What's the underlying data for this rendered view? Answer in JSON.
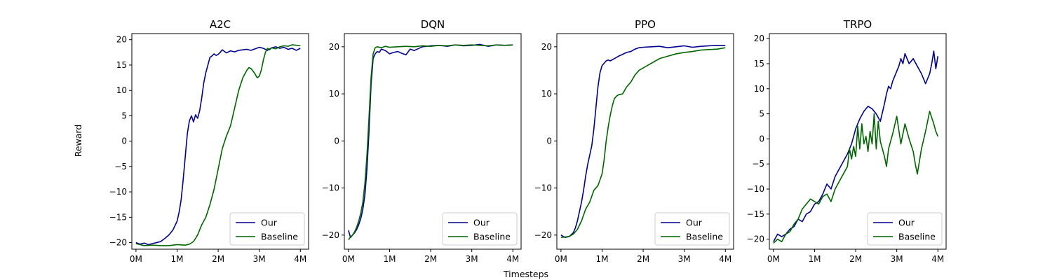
{
  "figure": {
    "xlabel": "Timesteps",
    "ylabel": "Reward",
    "colors": {
      "our": "#00008b",
      "baseline": "#006400",
      "frame": "#000000",
      "legend_border": "#cccccc"
    }
  },
  "chart_data": [
    {
      "type": "line",
      "title": "A2C",
      "xlim": [
        -0.1,
        4.2
      ],
      "ylim": [
        -21.3,
        21.2
      ],
      "xticks": [
        0,
        1,
        2,
        3,
        4
      ],
      "xtick_labels": [
        "0M",
        "1M",
        "2M",
        "3M",
        "4M"
      ],
      "yticks": [
        -20,
        -15,
        -10,
        -5,
        0,
        5,
        10,
        15,
        20
      ],
      "ytick_labels": [
        "−20",
        "−15",
        "−10",
        "−5",
        "0",
        "5",
        "10",
        "15",
        "20"
      ],
      "legend": {
        "placement": "lower-right",
        "entries": [
          "Our",
          "Baseline"
        ]
      },
      "series": [
        {
          "name": "Our",
          "color": "#00008b",
          "x": [
            0,
            0.1,
            0.2,
            0.3,
            0.4,
            0.5,
            0.6,
            0.7,
            0.8,
            0.9,
            1.0,
            1.05,
            1.1,
            1.15,
            1.2,
            1.25,
            1.3,
            1.35,
            1.4,
            1.45,
            1.5,
            1.55,
            1.6,
            1.65,
            1.7,
            1.75,
            1.8,
            1.85,
            1.9,
            1.95,
            2.0,
            2.05,
            2.1,
            2.15,
            2.2,
            2.3,
            2.4,
            2.5,
            2.6,
            2.7,
            2.8,
            2.9,
            3.0,
            3.1,
            3.2,
            3.3,
            3.4,
            3.5,
            3.6,
            3.7,
            3.8,
            3.9,
            4.0
          ],
          "y": [
            -20.0,
            -20.3,
            -20.1,
            -20.4,
            -20.2,
            -20.0,
            -19.8,
            -19.2,
            -18.5,
            -17.5,
            -15.8,
            -14.0,
            -11.5,
            -7.5,
            -3.0,
            1.5,
            4.0,
            5.0,
            3.8,
            5.2,
            4.5,
            6.0,
            8.5,
            11.5,
            13.5,
            15.0,
            16.5,
            16.8,
            17.2,
            16.9,
            17.1,
            17.5,
            18.0,
            17.7,
            17.4,
            17.8,
            17.6,
            17.9,
            18.0,
            18.1,
            17.9,
            18.2,
            18.5,
            18.3,
            17.9,
            18.4,
            18.6,
            18.3,
            18.5,
            18.1,
            18.3,
            17.9,
            18.3
          ]
        },
        {
          "name": "Baseline",
          "color": "#006400",
          "x": [
            0,
            0.2,
            0.4,
            0.6,
            0.8,
            1.0,
            1.2,
            1.3,
            1.4,
            1.5,
            1.6,
            1.7,
            1.8,
            1.9,
            2.0,
            2.1,
            2.2,
            2.3,
            2.4,
            2.5,
            2.6,
            2.7,
            2.75,
            2.8,
            2.85,
            2.9,
            2.95,
            3.0,
            3.05,
            3.1,
            3.15,
            3.2,
            3.25,
            3.3,
            3.4,
            3.5,
            3.6,
            3.7,
            3.8,
            3.9,
            4.0
          ],
          "y": [
            -20.2,
            -20.6,
            -20.5,
            -20.6,
            -20.6,
            -20.4,
            -20.5,
            -20.3,
            -19.8,
            -18.5,
            -16.5,
            -15.0,
            -12.5,
            -9.5,
            -5.5,
            -1.5,
            1.0,
            3.0,
            6.5,
            10.0,
            12.5,
            14.0,
            14.5,
            14.3,
            13.8,
            13.2,
            12.5,
            12.8,
            14.0,
            16.0,
            17.5,
            18.3,
            18.0,
            18.4,
            18.2,
            18.6,
            18.8,
            18.7,
            19.0,
            18.9,
            18.8
          ]
        }
      ]
    },
    {
      "type": "line",
      "title": "DQN",
      "xlim": [
        -0.1,
        4.2
      ],
      "ylim": [
        -23.0,
        22.8
      ],
      "xticks": [
        0,
        1,
        2,
        3,
        4
      ],
      "xtick_labels": [
        "0M",
        "1M",
        "2M",
        "3M",
        "4M"
      ],
      "yticks": [
        -20,
        -10,
        0,
        10,
        20
      ],
      "ytick_labels": [
        "−20",
        "−10",
        "0",
        "10",
        "20"
      ],
      "legend": {
        "placement": "lower-right",
        "entries": [
          "Our",
          "Baseline"
        ]
      },
      "series": [
        {
          "name": "Our",
          "color": "#00008b",
          "x": [
            0,
            0.05,
            0.1,
            0.15,
            0.2,
            0.25,
            0.3,
            0.35,
            0.4,
            0.45,
            0.5,
            0.55,
            0.6,
            0.65,
            0.7,
            0.75,
            0.8,
            0.9,
            1.0,
            1.1,
            1.2,
            1.3,
            1.4,
            1.5,
            1.6,
            1.8,
            2.0,
            2.2,
            2.4,
            2.6,
            2.8,
            3.0,
            3.2,
            3.4,
            3.6,
            3.8,
            4.0
          ],
          "y": [
            -19.0,
            -20.5,
            -20.0,
            -19.5,
            -18.8,
            -17.8,
            -16.5,
            -14.5,
            -11.5,
            -6.0,
            2.0,
            12.0,
            17.5,
            18.5,
            19.0,
            18.8,
            19.5,
            19.2,
            18.5,
            18.8,
            19.0,
            18.6,
            18.3,
            19.5,
            19.2,
            20.0,
            20.2,
            20.3,
            20.1,
            20.4,
            20.2,
            20.3,
            20.5,
            20.1,
            20.4,
            20.3,
            20.4
          ]
        },
        {
          "name": "Baseline",
          "color": "#006400",
          "x": [
            0,
            0.05,
            0.1,
            0.15,
            0.2,
            0.25,
            0.3,
            0.35,
            0.4,
            0.45,
            0.5,
            0.55,
            0.6,
            0.65,
            0.7,
            0.8,
            0.9,
            1.0,
            1.2,
            1.4,
            1.6,
            1.8,
            2.0,
            2.2,
            2.4,
            2.6,
            2.8,
            3.0,
            3.2,
            3.4,
            3.6,
            3.8,
            4.0
          ],
          "y": [
            -21.0,
            -20.4,
            -20.0,
            -19.3,
            -18.3,
            -17.0,
            -15.3,
            -13.0,
            -9.0,
            -3.0,
            5.0,
            13.5,
            18.5,
            19.8,
            20.0,
            19.8,
            20.1,
            19.9,
            20.0,
            20.1,
            20.0,
            20.2,
            20.1,
            20.3,
            20.2,
            20.4,
            20.3,
            20.4,
            20.3,
            20.2,
            20.4,
            20.3,
            20.4
          ]
        }
      ]
    },
    {
      "type": "line",
      "title": "PPO",
      "xlim": [
        -0.1,
        4.2
      ],
      "ylim": [
        -23.0,
        22.8
      ],
      "xticks": [
        0,
        1,
        2,
        3,
        4
      ],
      "xtick_labels": [
        "0M",
        "1M",
        "2M",
        "3M",
        "4M"
      ],
      "yticks": [
        -20,
        -10,
        0,
        10,
        20
      ],
      "ytick_labels": [
        "−20",
        "−10",
        "0",
        "10",
        "20"
      ],
      "legend": {
        "placement": "lower-right",
        "entries": [
          "Our",
          "Baseline"
        ]
      },
      "series": [
        {
          "name": "Our",
          "color": "#00008b",
          "x": [
            0,
            0.1,
            0.2,
            0.3,
            0.35,
            0.4,
            0.45,
            0.5,
            0.55,
            0.6,
            0.65,
            0.7,
            0.75,
            0.8,
            0.85,
            0.9,
            0.95,
            1.0,
            1.05,
            1.1,
            1.15,
            1.2,
            1.3,
            1.4,
            1.5,
            1.6,
            1.7,
            1.8,
            1.9,
            2.0,
            2.2,
            2.4,
            2.6,
            2.8,
            3.0,
            3.2,
            3.4,
            3.6,
            3.8,
            4.0
          ],
          "y": [
            -20.0,
            -20.5,
            -20.3,
            -19.5,
            -18.5,
            -17.0,
            -15.0,
            -13.0,
            -10.5,
            -7.5,
            -5.0,
            -3.0,
            -1.0,
            2.5,
            7.0,
            11.5,
            14.5,
            16.0,
            16.5,
            17.0,
            17.2,
            17.0,
            17.5,
            18.0,
            18.4,
            18.8,
            19.0,
            19.5,
            19.8,
            19.9,
            20.0,
            20.1,
            19.8,
            20.0,
            20.2,
            19.9,
            20.1,
            20.2,
            20.3,
            20.3
          ]
        },
        {
          "name": "Baseline",
          "color": "#006400",
          "x": [
            0,
            0.1,
            0.2,
            0.3,
            0.4,
            0.5,
            0.6,
            0.7,
            0.8,
            0.9,
            1.0,
            1.05,
            1.1,
            1.15,
            1.2,
            1.25,
            1.3,
            1.35,
            1.4,
            1.5,
            1.6,
            1.7,
            1.8,
            1.9,
            2.0,
            2.1,
            2.2,
            2.3,
            2.4,
            2.6,
            2.8,
            3.0,
            3.2,
            3.4,
            3.6,
            3.8,
            4.0
          ],
          "y": [
            -20.5,
            -20.4,
            -20.3,
            -19.8,
            -18.8,
            -17.0,
            -14.5,
            -13.0,
            -10.5,
            -9.5,
            -7.0,
            -4.0,
            0.0,
            3.0,
            5.5,
            7.5,
            9.0,
            9.5,
            9.8,
            10.0,
            11.5,
            12.5,
            14.0,
            15.0,
            15.5,
            16.0,
            16.5,
            17.0,
            17.5,
            18.0,
            18.5,
            18.8,
            19.0,
            19.3,
            19.4,
            19.5,
            19.8
          ]
        }
      ]
    },
    {
      "type": "line",
      "title": "TRPO",
      "xlim": [
        -0.1,
        4.2
      ],
      "ylim": [
        -22.0,
        21.0
      ],
      "xticks": [
        0,
        1,
        2,
        3,
        4
      ],
      "xtick_labels": [
        "0M",
        "1M",
        "2M",
        "3M",
        "4M"
      ],
      "yticks": [
        -20,
        -15,
        -10,
        -5,
        0,
        5,
        10,
        15,
        20
      ],
      "ytick_labels": [
        "−20",
        "−15",
        "−10",
        "−5",
        "0",
        "5",
        "10",
        "15",
        "20"
      ],
      "legend": {
        "placement": "lower-right",
        "entries": [
          "Our",
          "Baseline"
        ]
      },
      "series": [
        {
          "name": "Our",
          "color": "#00008b",
          "x": [
            0,
            0.1,
            0.2,
            0.3,
            0.4,
            0.5,
            0.6,
            0.7,
            0.8,
            0.9,
            1.0,
            1.1,
            1.2,
            1.3,
            1.4,
            1.5,
            1.6,
            1.7,
            1.8,
            1.9,
            2.0,
            2.1,
            2.2,
            2.3,
            2.4,
            2.5,
            2.6,
            2.7,
            2.75,
            2.8,
            2.85,
            2.9,
            3.0,
            3.05,
            3.1,
            3.15,
            3.2,
            3.3,
            3.4,
            3.5,
            3.6,
            3.65,
            3.7,
            3.8,
            3.85,
            3.9,
            3.95,
            4.0
          ],
          "y": [
            -20.5,
            -19.0,
            -19.5,
            -19.0,
            -18.0,
            -17.5,
            -16.0,
            -16.5,
            -15.0,
            -14.5,
            -13.0,
            -12.5,
            -11.0,
            -9.0,
            -10.0,
            -7.5,
            -6.0,
            -4.5,
            -3.0,
            -1.0,
            2.0,
            4.0,
            5.5,
            6.5,
            6.0,
            5.0,
            3.5,
            7.0,
            9.0,
            10.5,
            10.0,
            11.5,
            13.5,
            14.5,
            16.0,
            15.0,
            17.0,
            15.0,
            16.0,
            14.5,
            13.0,
            12.0,
            11.0,
            13.0,
            15.0,
            17.5,
            14.0,
            16.5
          ]
        },
        {
          "name": "Baseline",
          "color": "#006400",
          "x": [
            0,
            0.1,
            0.2,
            0.3,
            0.4,
            0.5,
            0.6,
            0.7,
            0.8,
            0.9,
            1.0,
            1.1,
            1.2,
            1.3,
            1.4,
            1.5,
            1.6,
            1.7,
            1.8,
            1.85,
            1.9,
            1.95,
            2.0,
            2.05,
            2.1,
            2.15,
            2.2,
            2.25,
            2.3,
            2.35,
            2.4,
            2.45,
            2.5,
            2.55,
            2.6,
            2.7,
            2.75,
            2.8,
            2.9,
            3.0,
            3.1,
            3.2,
            3.3,
            3.4,
            3.45,
            3.5,
            3.6,
            3.7,
            3.8,
            3.9,
            3.95,
            4.0
          ],
          "y": [
            -20.8,
            -20.0,
            -20.5,
            -19.0,
            -18.5,
            -17.0,
            -16.0,
            -14.0,
            -13.0,
            -12.0,
            -12.5,
            -13.0,
            -11.5,
            -11.0,
            -12.5,
            -10.0,
            -8.5,
            -7.0,
            -5.5,
            -2.0,
            -4.0,
            -1.5,
            -3.5,
            2.5,
            -2.0,
            3.0,
            -1.0,
            0.5,
            -2.5,
            1.5,
            -1.0,
            5.0,
            -2.0,
            3.5,
            -0.5,
            -3.5,
            -5.5,
            -2.0,
            1.0,
            4.5,
            -1.0,
            3.0,
            0.0,
            -2.5,
            -5.0,
            -7.0,
            -2.0,
            1.5,
            5.5,
            3.0,
            1.5,
            0.5
          ]
        }
      ]
    }
  ]
}
